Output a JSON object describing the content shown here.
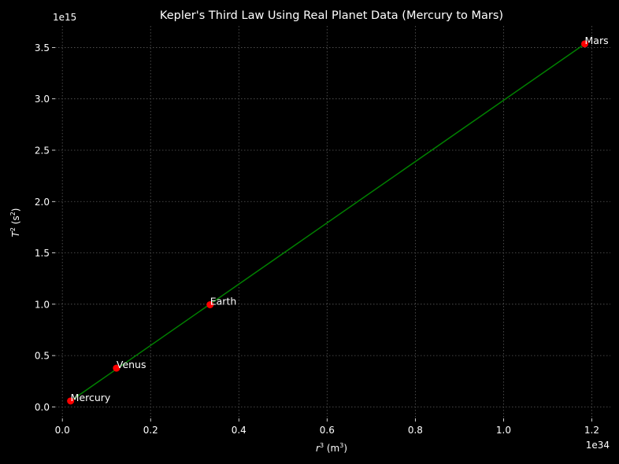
{
  "chart_data": {
    "type": "scatter",
    "title": "Kepler's Third Law Using Real Planet Data (Mercury to Mars)",
    "xlabel": {
      "base": "r",
      "sup": "3",
      "unit_open": " (m",
      "unit_sup": "3",
      "unit_close": ")"
    },
    "ylabel": {
      "base": "T",
      "sup": "2",
      "unit_open": " (s",
      "unit_sup": "2",
      "unit_close": ")"
    },
    "x_offset_text": "1e34",
    "y_offset_text": "1e15",
    "x_scale": 1e+34,
    "y_scale": 1000000000000000.0,
    "xlim": [
      -0.0164,
      1.242
    ],
    "ylim": [
      -0.112,
      3.71
    ],
    "xticks": [
      0.0,
      0.2,
      0.4,
      0.6,
      0.8,
      1.0,
      1.2
    ],
    "xtick_labels": [
      "0.0",
      "0.2",
      "0.4",
      "0.6",
      "0.8",
      "1.0",
      "1.2"
    ],
    "yticks": [
      0.0,
      0.5,
      1.0,
      1.5,
      2.0,
      2.5,
      3.0,
      3.5
    ],
    "ytick_labels": [
      "0.0",
      "0.5",
      "1.0",
      "1.5",
      "2.0",
      "2.5",
      "3.0",
      "3.5"
    ],
    "grid": true,
    "series": [
      {
        "points": [
          {
            "label": "Mercury",
            "x": 0.0187,
            "y": 0.0578
          },
          {
            "label": "Venus",
            "x": 0.1226,
            "y": 0.3776
          },
          {
            "label": "Earth",
            "x": 0.3348,
            "y": 0.995
          },
          {
            "label": "Mars",
            "x": 1.184,
            "y": 3.535
          }
        ],
        "marker_color": "#ff0000"
      }
    ],
    "fit_line": {
      "x": [
        0.0187,
        1.184
      ],
      "y": [
        0.0578,
        3.535
      ],
      "color": "#008000"
    },
    "colors": {
      "background": "#000000",
      "text": "#ffffff",
      "grid": "#5a5a5a"
    }
  }
}
